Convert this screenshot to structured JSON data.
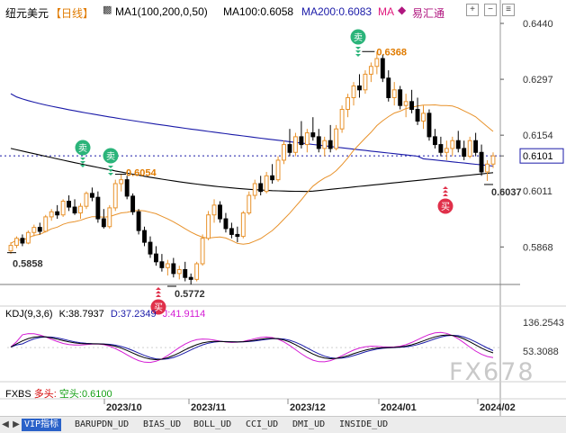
{
  "header": {
    "symbol": "纽元美元",
    "period": "【日线】",
    "ma_config": "MA1(100,200,0,50)",
    "ma100": "MA100:0.6058",
    "ma200": "MA200:0.6083",
    "ma_short": "MA",
    "source": "易汇通",
    "colors": {
      "ma100": "#000000",
      "ma200": "#1a1aa8",
      "ma_short": "#e0197d",
      "source": "#b0167f"
    }
  },
  "price_axis": [
    "0.6440",
    "0.6297",
    "0.6154",
    "0.6101",
    "0.6011",
    "0.5868"
  ],
  "annotations": {
    "high": "0.6368",
    "left_high": "0.6054",
    "low": "0.5772",
    "left_low": "0.5858",
    "recent_low": "0.6037",
    "sell_label": "卖",
    "buy_label": "买"
  },
  "kdj": {
    "title": "KDJ(9,3,6)",
    "k": "K:38.7937",
    "d": "D:37.2349",
    "j": "J:41.9114",
    "axis": [
      "136.2543",
      "53.3088"
    ]
  },
  "fxbs": {
    "title": "FXBS",
    "long": "多头:",
    "short": "空头:0.6100"
  },
  "time_axis": [
    "2023/10",
    "2023/11",
    "2023/12",
    "2024/01",
    "2024/02"
  ],
  "tabs": [
    "VIP指标",
    "BARUPDN_UD",
    "BIAS_UD",
    "BOLL_UD",
    "CCI_UD",
    "DMI_UD",
    "INSIDE_UD"
  ],
  "watermark": "FX678",
  "chart_data": {
    "type": "candlestick",
    "price_range": [
      0.5772,
      0.644
    ],
    "series": [
      {
        "name": "MA100",
        "color": "#000000"
      },
      {
        "name": "MA200",
        "color": "#1a1aa8"
      }
    ],
    "price_points": {
      "high": 0.6368,
      "left_high": 0.6054,
      "low": 0.5772,
      "left_low": 0.5858,
      "recent_low": 0.6037,
      "last": 0.6101
    },
    "candles": [
      [
        0.5858,
        0.588,
        0.585,
        0.5872
      ],
      [
        0.5872,
        0.5895,
        0.5865,
        0.589
      ],
      [
        0.589,
        0.59,
        0.587,
        0.5878
      ],
      [
        0.5878,
        0.591,
        0.5875,
        0.5905
      ],
      [
        0.5905,
        0.5925,
        0.5895,
        0.5918
      ],
      [
        0.5918,
        0.593,
        0.59,
        0.5908
      ],
      [
        0.5908,
        0.595,
        0.5905,
        0.5945
      ],
      [
        0.5945,
        0.5965,
        0.5935,
        0.5958
      ],
      [
        0.5958,
        0.5975,
        0.594,
        0.595
      ],
      [
        0.595,
        0.599,
        0.5945,
        0.5985
      ],
      [
        0.5985,
        0.6,
        0.596,
        0.597
      ],
      [
        0.597,
        0.599,
        0.595,
        0.5955
      ],
      [
        0.5955,
        0.598,
        0.594,
        0.5972
      ],
      [
        0.5972,
        0.601,
        0.5965,
        0.6005
      ],
      [
        0.6005,
        0.602,
        0.5985,
        0.5995
      ],
      [
        0.5995,
        0.601,
        0.593,
        0.594
      ],
      [
        0.594,
        0.5965,
        0.5915,
        0.592
      ],
      [
        0.592,
        0.5975,
        0.5915,
        0.5968
      ],
      [
        0.5968,
        0.604,
        0.596,
        0.603
      ],
      [
        0.603,
        0.6054,
        0.601,
        0.604
      ],
      [
        0.604,
        0.605,
        0.599,
        0.5998
      ],
      [
        0.5998,
        0.6005,
        0.595,
        0.5958
      ],
      [
        0.5958,
        0.5965,
        0.59,
        0.591
      ],
      [
        0.591,
        0.592,
        0.587,
        0.588
      ],
      [
        0.588,
        0.5895,
        0.584,
        0.585
      ],
      [
        0.585,
        0.587,
        0.582,
        0.583
      ],
      [
        0.583,
        0.585,
        0.5805,
        0.5815
      ],
      [
        0.5815,
        0.5835,
        0.5795,
        0.5825
      ],
      [
        0.5825,
        0.584,
        0.579,
        0.58
      ],
      [
        0.58,
        0.582,
        0.5785,
        0.581
      ],
      [
        0.581,
        0.583,
        0.578,
        0.579
      ],
      [
        0.579,
        0.58,
        0.5772,
        0.5785
      ],
      [
        0.5785,
        0.583,
        0.578,
        0.5825
      ],
      [
        0.5825,
        0.59,
        0.582,
        0.589
      ],
      [
        0.589,
        0.596,
        0.5885,
        0.595
      ],
      [
        0.595,
        0.599,
        0.593,
        0.5975
      ],
      [
        0.5975,
        0.5985,
        0.593,
        0.594
      ],
      [
        0.594,
        0.5955,
        0.5905,
        0.5915
      ],
      [
        0.5915,
        0.593,
        0.589,
        0.59
      ],
      [
        0.59,
        0.592,
        0.588,
        0.5895
      ],
      [
        0.5895,
        0.596,
        0.589,
        0.5955
      ],
      [
        0.5955,
        0.601,
        0.595,
        0.6
      ],
      [
        0.6,
        0.604,
        0.599,
        0.603
      ],
      [
        0.603,
        0.605,
        0.6,
        0.601
      ],
      [
        0.601,
        0.606,
        0.6005,
        0.605
      ],
      [
        0.605,
        0.608,
        0.603,
        0.604
      ],
      [
        0.604,
        0.61,
        0.6035,
        0.609
      ],
      [
        0.609,
        0.614,
        0.608,
        0.613
      ],
      [
        0.613,
        0.617,
        0.61,
        0.611
      ],
      [
        0.611,
        0.616,
        0.61,
        0.615
      ],
      [
        0.615,
        0.619,
        0.612,
        0.613
      ],
      [
        0.613,
        0.617,
        0.611,
        0.616
      ],
      [
        0.616,
        0.62,
        0.614,
        0.615
      ],
      [
        0.615,
        0.617,
        0.611,
        0.612
      ],
      [
        0.612,
        0.615,
        0.61,
        0.614
      ],
      [
        0.614,
        0.618,
        0.611,
        0.612
      ],
      [
        0.612,
        0.618,
        0.6115,
        0.617
      ],
      [
        0.617,
        0.623,
        0.616,
        0.622
      ],
      [
        0.622,
        0.626,
        0.62,
        0.625
      ],
      [
        0.625,
        0.629,
        0.623,
        0.628
      ],
      [
        0.628,
        0.631,
        0.625,
        0.627
      ],
      [
        0.627,
        0.632,
        0.626,
        0.631
      ],
      [
        0.631,
        0.634,
        0.629,
        0.633
      ],
      [
        0.633,
        0.6368,
        0.631,
        0.635
      ],
      [
        0.635,
        0.636,
        0.629,
        0.63
      ],
      [
        0.63,
        0.632,
        0.624,
        0.625
      ],
      [
        0.625,
        0.629,
        0.623,
        0.627
      ],
      [
        0.627,
        0.628,
        0.622,
        0.623
      ],
      [
        0.623,
        0.626,
        0.62,
        0.624
      ],
      [
        0.624,
        0.627,
        0.621,
        0.622
      ],
      [
        0.622,
        0.625,
        0.618,
        0.619
      ],
      [
        0.619,
        0.623,
        0.617,
        0.621
      ],
      [
        0.621,
        0.622,
        0.614,
        0.615
      ],
      [
        0.615,
        0.617,
        0.612,
        0.613
      ],
      [
        0.613,
        0.615,
        0.61,
        0.611
      ],
      [
        0.611,
        0.614,
        0.609,
        0.612
      ],
      [
        0.612,
        0.615,
        0.61,
        0.614
      ],
      [
        0.614,
        0.6165,
        0.611,
        0.612
      ],
      [
        0.612,
        0.614,
        0.609,
        0.61
      ],
      [
        0.61,
        0.615,
        0.6095,
        0.614
      ],
      [
        0.614,
        0.616,
        0.61,
        0.611
      ],
      [
        0.611,
        0.613,
        0.605,
        0.606
      ],
      [
        0.606,
        0.609,
        0.6037,
        0.608
      ],
      [
        0.608,
        0.611,
        0.607,
        0.6101
      ]
    ]
  }
}
